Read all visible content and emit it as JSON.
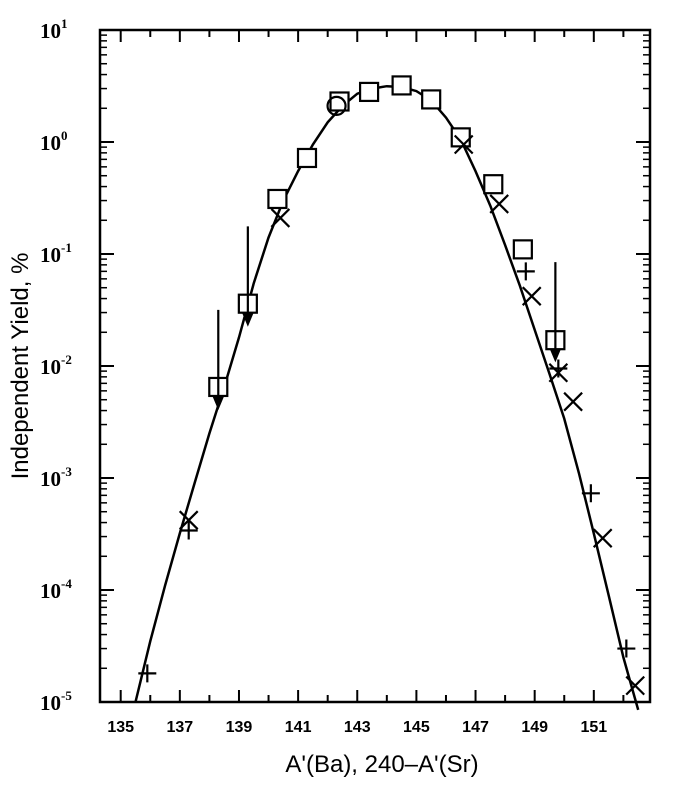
{
  "chart_data": {
    "type": "scatter",
    "title": "",
    "xlabel": "A'(Ba),  240–A'(Sr)",
    "ylabel": "Independent Yield, %",
    "y_scale": "log",
    "xlim": [
      134.3,
      152.9
    ],
    "ylim": [
      1e-05,
      10
    ],
    "x_ticks": [
      135,
      137,
      139,
      141,
      143,
      145,
      147,
      149,
      151
    ],
    "y_ticks": [
      {
        "value": 10,
        "base": "10",
        "exp": "1"
      },
      {
        "value": 1,
        "base": "10",
        "exp": "0"
      },
      {
        "value": 0.1,
        "base": "10",
        "exp": "-1"
      },
      {
        "value": 0.01,
        "base": "10",
        "exp": "-2"
      },
      {
        "value": 0.001,
        "base": "10",
        "exp": "-3"
      },
      {
        "value": 0.0001,
        "base": "10",
        "exp": "-4"
      },
      {
        "value": 1e-05,
        "base": "10",
        "exp": "-5"
      }
    ],
    "series": [
      {
        "marker": "square",
        "points": [
          {
            "x": 138.3,
            "y": 0.0065
          },
          {
            "x": 139.3,
            "y": 0.036
          },
          {
            "x": 140.3,
            "y": 0.31
          },
          {
            "x": 141.3,
            "y": 0.72
          },
          {
            "x": 142.4,
            "y": 2.3
          },
          {
            "x": 143.4,
            "y": 2.8
          },
          {
            "x": 144.5,
            "y": 3.2
          },
          {
            "x": 145.5,
            "y": 2.4
          },
          {
            "x": 146.5,
            "y": 1.1
          },
          {
            "x": 147.6,
            "y": 0.42
          },
          {
            "x": 148.6,
            "y": 0.11
          },
          {
            "x": 149.7,
            "y": 0.017
          }
        ]
      },
      {
        "marker": "circle",
        "points": [
          {
            "x": 142.3,
            "y": 2.1
          }
        ]
      },
      {
        "marker": "x",
        "points": [
          {
            "x": 137.3,
            "y": 0.00042
          },
          {
            "x": 140.4,
            "y": 0.21
          },
          {
            "x": 146.6,
            "y": 0.95
          },
          {
            "x": 147.8,
            "y": 0.28
          },
          {
            "x": 148.9,
            "y": 0.042
          },
          {
            "x": 149.8,
            "y": 0.0087
          },
          {
            "x": 150.3,
            "y": 0.0048
          },
          {
            "x": 151.3,
            "y": 0.00029
          },
          {
            "x": 152.4,
            "y": 1.4e-05
          }
        ]
      },
      {
        "marker": "plus",
        "points": [
          {
            "x": 135.9,
            "y": 1.8e-05
          },
          {
            "x": 137.3,
            "y": 0.00034
          },
          {
            "x": 148.7,
            "y": 0.07
          },
          {
            "x": 149.8,
            "y": 0.0095
          },
          {
            "x": 150.9,
            "y": 0.00073
          },
          {
            "x": 152.1,
            "y": 3e-05
          }
        ]
      },
      {
        "marker": "upper-limit-arrow",
        "points": [
          {
            "x": 138.3,
            "y": 0.0045
          },
          {
            "x": 139.3,
            "y": 0.025
          },
          {
            "x": 149.7,
            "y": 0.012
          }
        ]
      }
    ],
    "fit_curve": {
      "x": [
        135.5,
        136.0,
        136.5,
        137.0,
        137.5,
        138.0,
        138.5,
        139.0,
        139.5,
        140.0,
        140.5,
        141.0,
        141.5,
        142.0,
        142.5,
        143.0,
        143.5,
        144.0,
        144.5,
        145.0,
        145.5,
        146.0,
        146.5,
        147.0,
        147.5,
        148.0,
        148.5,
        149.0,
        149.5,
        150.0,
        150.5,
        151.0,
        151.5,
        152.0,
        152.5
      ],
      "y": [
        1e-05,
        3.5e-05,
        0.00011,
        0.00032,
        0.0009,
        0.0025,
        0.0065,
        0.018,
        0.055,
        0.14,
        0.3,
        0.55,
        0.95,
        1.5,
        2.1,
        2.7,
        3.0,
        3.15,
        3.1,
        2.85,
        2.35,
        1.65,
        1.05,
        0.55,
        0.27,
        0.12,
        0.052,
        0.021,
        0.0085,
        0.0034,
        0.0011,
        0.00032,
        9e-05,
        2.5e-05,
        8.5e-06
      ]
    },
    "grid": false,
    "legend": "none"
  }
}
